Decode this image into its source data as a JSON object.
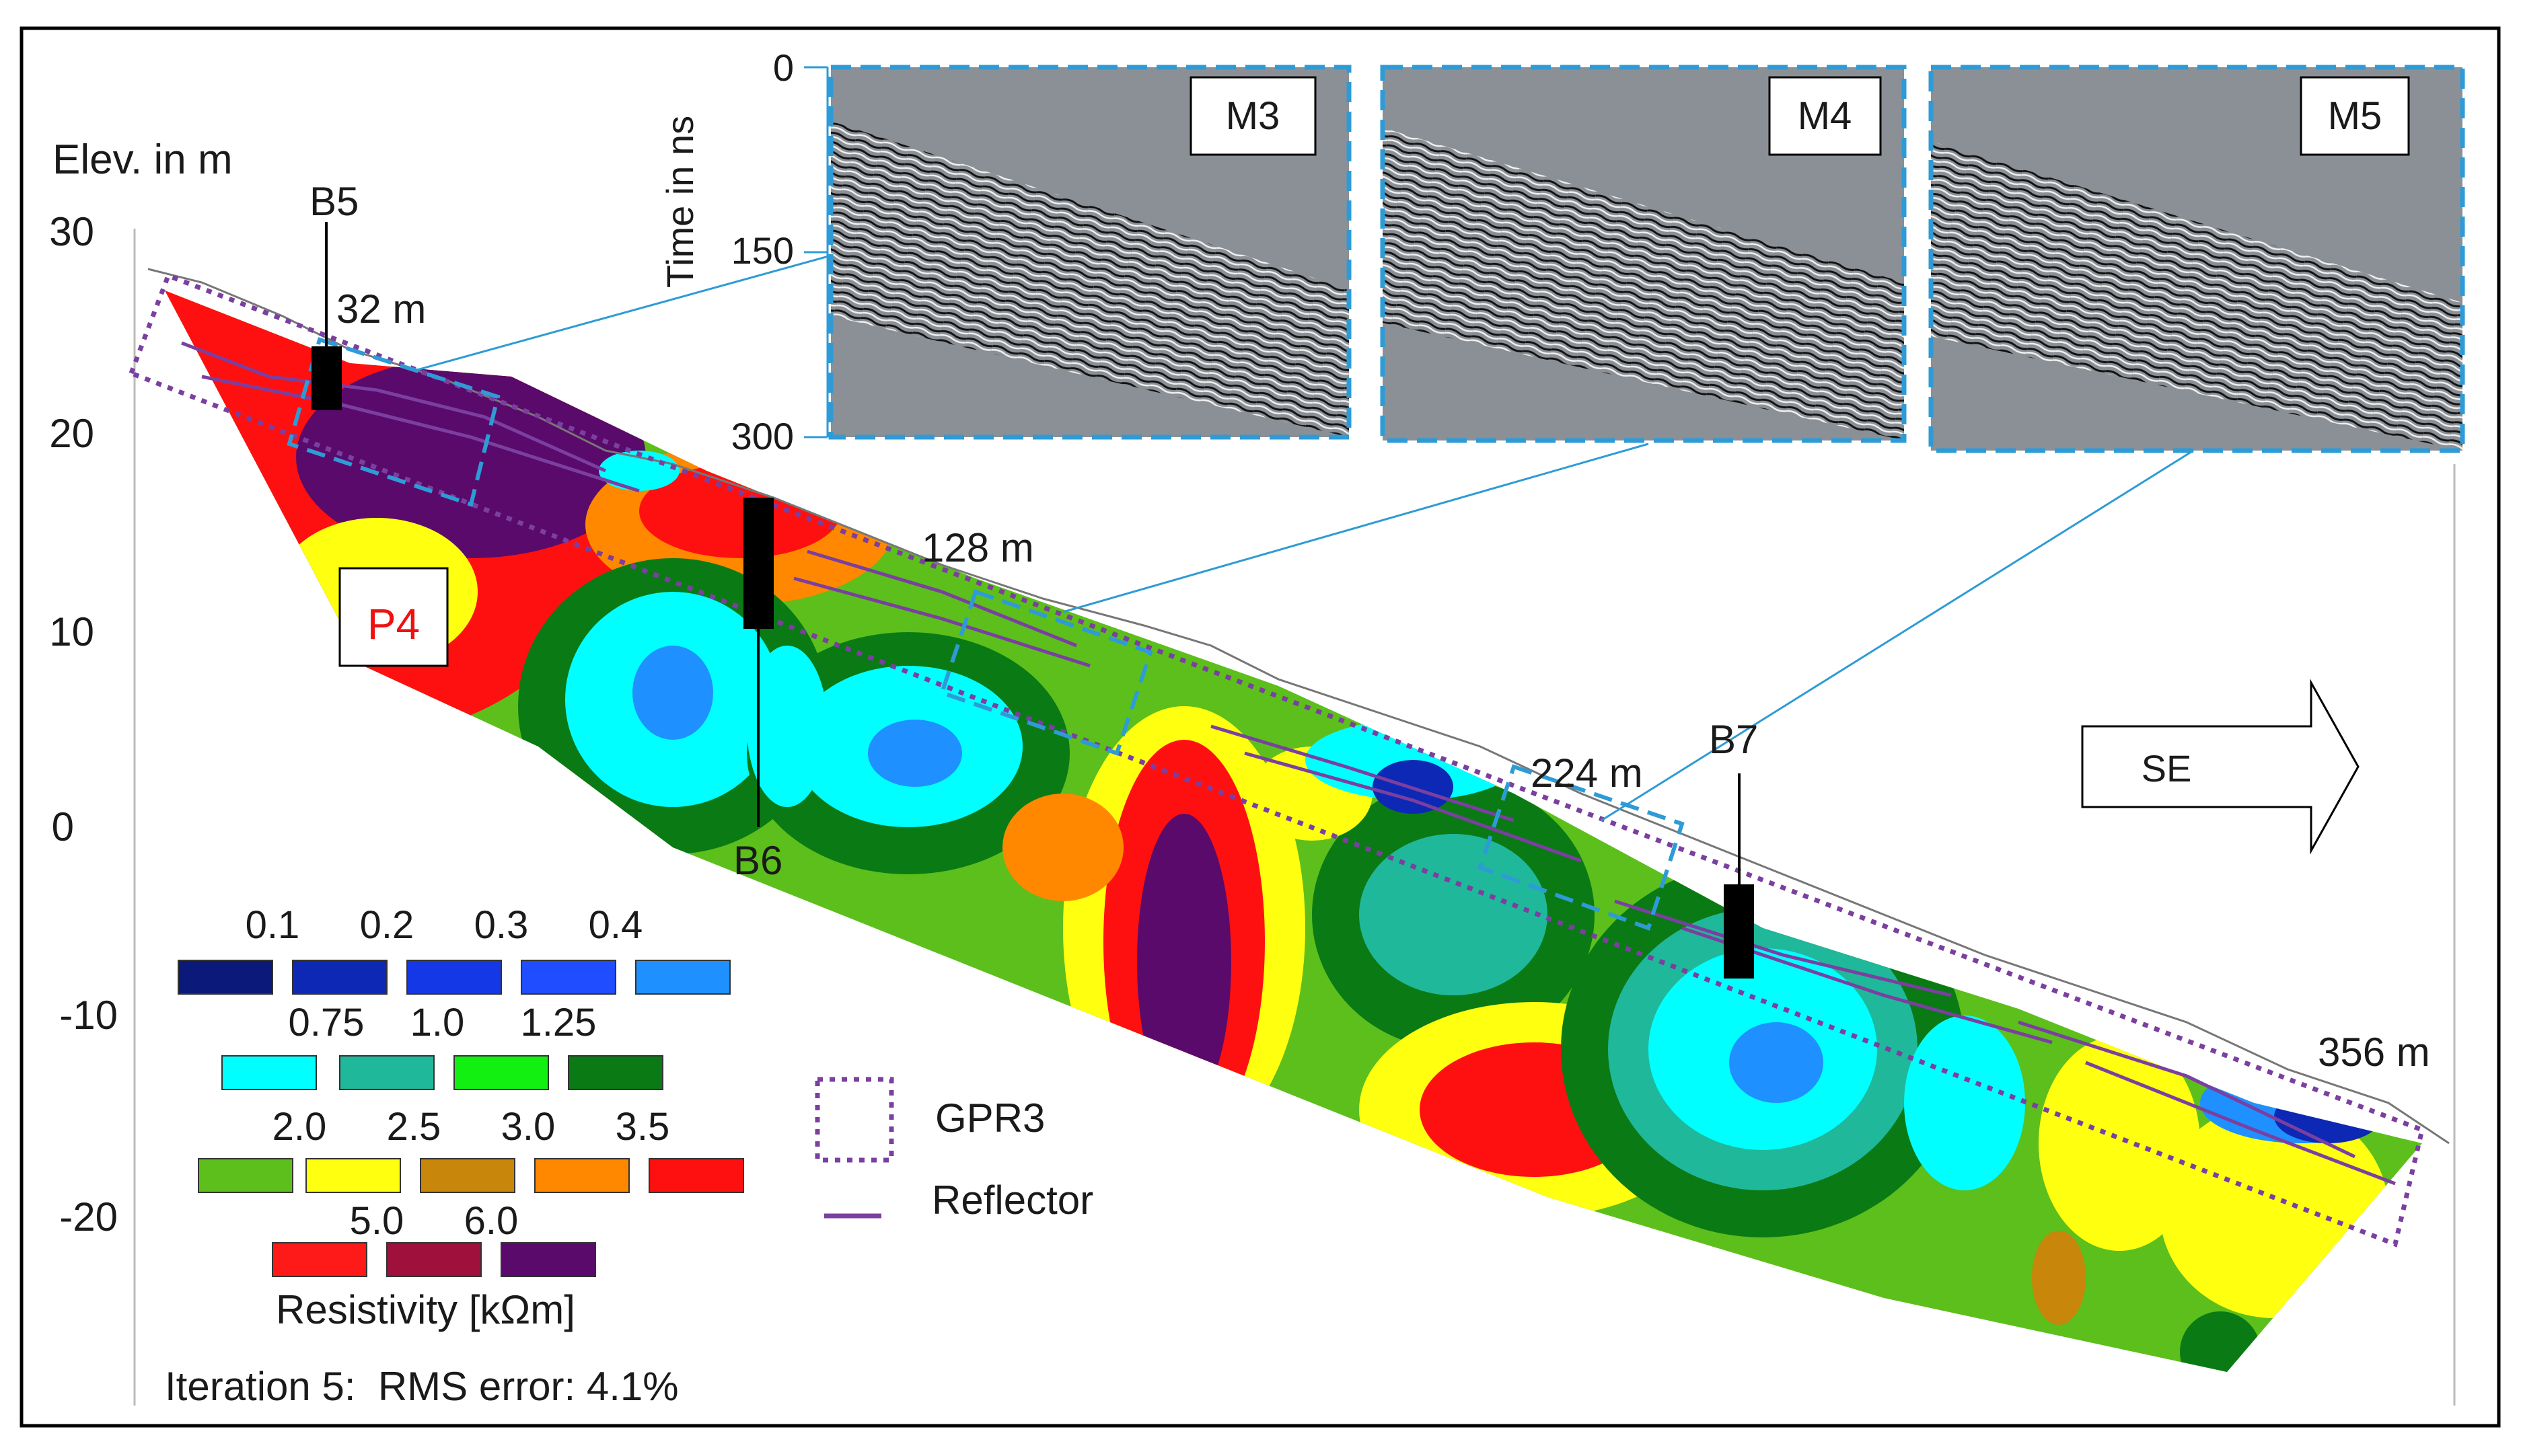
{
  "elevation_axis": {
    "title": "Elev. in m",
    "ticks": [
      "30",
      "20",
      "10",
      "0",
      "-10",
      "-20"
    ]
  },
  "boreholes": [
    "B5",
    "B6",
    "B7"
  ],
  "profile_label": "P4",
  "distances": [
    "32 m",
    "128 m",
    "224 m",
    "356 m"
  ],
  "direction": "SE",
  "gpr_time_axis": {
    "title": "Time in ns",
    "ticks": [
      "0",
      "150",
      "300"
    ]
  },
  "gpr_panels": [
    "M3",
    "M4",
    "M5"
  ],
  "legend": {
    "row1_labels": [
      "0.1",
      "0.2",
      "0.3",
      "0.4"
    ],
    "row2_labels": [
      "0.75",
      "1.0",
      "1.25"
    ],
    "row3_labels": [
      "2.0",
      "2.5",
      "3.0",
      "3.5"
    ],
    "row4_labels": [
      "5.0",
      "6.0"
    ],
    "title": "Resistivity [kΩm]",
    "swatch_colors": [
      [
        "#0b1a7a",
        "#0d28b4",
        "#1438e6",
        "#1f4dff",
        "#1e90ff"
      ],
      [
        "#00ffff",
        "#1fb89a",
        "#12f012",
        "#0a7a14"
      ],
      [
        "#5cbf1b",
        "#ffff10",
        "#c8860a",
        "#ff8800",
        "#ff1010"
      ],
      [
        "#ff1a1a",
        "#a0103c",
        "#5a0a6a"
      ]
    ]
  },
  "key": {
    "gpr_label": "GPR3",
    "reflector_label": "Reflector"
  },
  "footer": "Iteration 5:  RMS error: 4.1%",
  "colors": {
    "gpr_outline": "#7b3fa0",
    "panel_outline": "#2e9bd6",
    "reflector": "#7b3fa0",
    "frame": "#000000"
  }
}
